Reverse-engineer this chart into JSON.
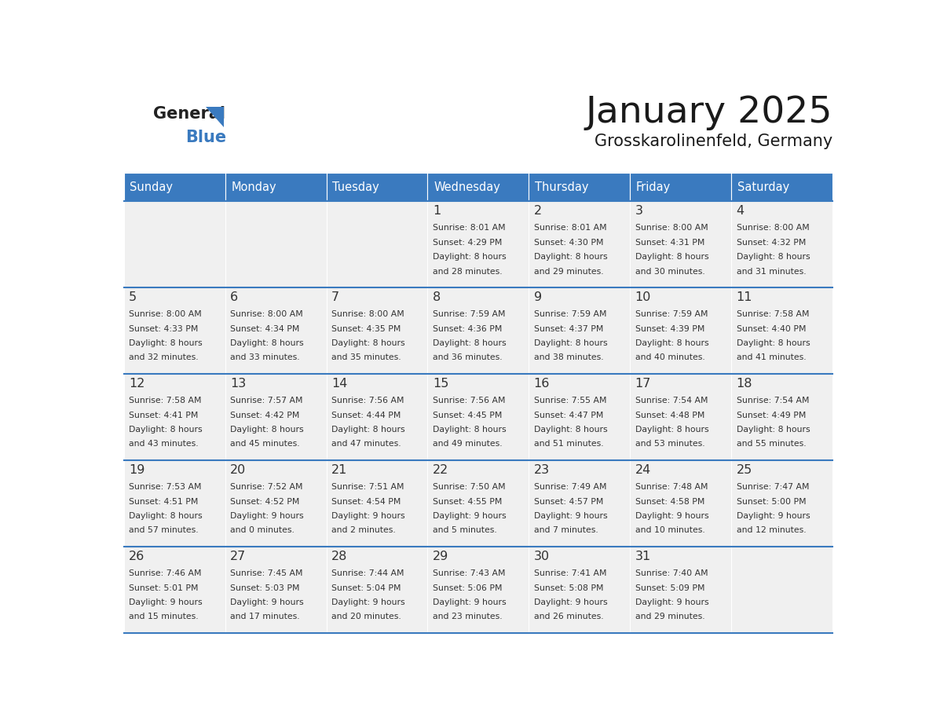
{
  "title": "January 2025",
  "subtitle": "Grosskarolinenfeld, Germany",
  "days_of_week": [
    "Sunday",
    "Monday",
    "Tuesday",
    "Wednesday",
    "Thursday",
    "Friday",
    "Saturday"
  ],
  "header_bg": "#3a7abf",
  "header_text": "#ffffff",
  "cell_bg_light": "#f0f0f0",
  "cell_bg_white": "#ffffff",
  "row_line_color": "#3a7abf",
  "text_color": "#333333",
  "calendar_data": [
    [
      null,
      null,
      null,
      {
        "day": 1,
        "sunrise": "8:01 AM",
        "sunset": "4:29 PM",
        "daylight_hours": 8,
        "daylight_minutes": 28
      },
      {
        "day": 2,
        "sunrise": "8:01 AM",
        "sunset": "4:30 PM",
        "daylight_hours": 8,
        "daylight_minutes": 29
      },
      {
        "day": 3,
        "sunrise": "8:00 AM",
        "sunset": "4:31 PM",
        "daylight_hours": 8,
        "daylight_minutes": 30
      },
      {
        "day": 4,
        "sunrise": "8:00 AM",
        "sunset": "4:32 PM",
        "daylight_hours": 8,
        "daylight_minutes": 31
      }
    ],
    [
      {
        "day": 5,
        "sunrise": "8:00 AM",
        "sunset": "4:33 PM",
        "daylight_hours": 8,
        "daylight_minutes": 32
      },
      {
        "day": 6,
        "sunrise": "8:00 AM",
        "sunset": "4:34 PM",
        "daylight_hours": 8,
        "daylight_minutes": 33
      },
      {
        "day": 7,
        "sunrise": "8:00 AM",
        "sunset": "4:35 PM",
        "daylight_hours": 8,
        "daylight_minutes": 35
      },
      {
        "day": 8,
        "sunrise": "7:59 AM",
        "sunset": "4:36 PM",
        "daylight_hours": 8,
        "daylight_minutes": 36
      },
      {
        "day": 9,
        "sunrise": "7:59 AM",
        "sunset": "4:37 PM",
        "daylight_hours": 8,
        "daylight_minutes": 38
      },
      {
        "day": 10,
        "sunrise": "7:59 AM",
        "sunset": "4:39 PM",
        "daylight_hours": 8,
        "daylight_minutes": 40
      },
      {
        "day": 11,
        "sunrise": "7:58 AM",
        "sunset": "4:40 PM",
        "daylight_hours": 8,
        "daylight_minutes": 41
      }
    ],
    [
      {
        "day": 12,
        "sunrise": "7:58 AM",
        "sunset": "4:41 PM",
        "daylight_hours": 8,
        "daylight_minutes": 43
      },
      {
        "day": 13,
        "sunrise": "7:57 AM",
        "sunset": "4:42 PM",
        "daylight_hours": 8,
        "daylight_minutes": 45
      },
      {
        "day": 14,
        "sunrise": "7:56 AM",
        "sunset": "4:44 PM",
        "daylight_hours": 8,
        "daylight_minutes": 47
      },
      {
        "day": 15,
        "sunrise": "7:56 AM",
        "sunset": "4:45 PM",
        "daylight_hours": 8,
        "daylight_minutes": 49
      },
      {
        "day": 16,
        "sunrise": "7:55 AM",
        "sunset": "4:47 PM",
        "daylight_hours": 8,
        "daylight_minutes": 51
      },
      {
        "day": 17,
        "sunrise": "7:54 AM",
        "sunset": "4:48 PM",
        "daylight_hours": 8,
        "daylight_minutes": 53
      },
      {
        "day": 18,
        "sunrise": "7:54 AM",
        "sunset": "4:49 PM",
        "daylight_hours": 8,
        "daylight_minutes": 55
      }
    ],
    [
      {
        "day": 19,
        "sunrise": "7:53 AM",
        "sunset": "4:51 PM",
        "daylight_hours": 8,
        "daylight_minutes": 57
      },
      {
        "day": 20,
        "sunrise": "7:52 AM",
        "sunset": "4:52 PM",
        "daylight_hours": 9,
        "daylight_minutes": 0
      },
      {
        "day": 21,
        "sunrise": "7:51 AM",
        "sunset": "4:54 PM",
        "daylight_hours": 9,
        "daylight_minutes": 2
      },
      {
        "day": 22,
        "sunrise": "7:50 AM",
        "sunset": "4:55 PM",
        "daylight_hours": 9,
        "daylight_minutes": 5
      },
      {
        "day": 23,
        "sunrise": "7:49 AM",
        "sunset": "4:57 PM",
        "daylight_hours": 9,
        "daylight_minutes": 7
      },
      {
        "day": 24,
        "sunrise": "7:48 AM",
        "sunset": "4:58 PM",
        "daylight_hours": 9,
        "daylight_minutes": 10
      },
      {
        "day": 25,
        "sunrise": "7:47 AM",
        "sunset": "5:00 PM",
        "daylight_hours": 9,
        "daylight_minutes": 12
      }
    ],
    [
      {
        "day": 26,
        "sunrise": "7:46 AM",
        "sunset": "5:01 PM",
        "daylight_hours": 9,
        "daylight_minutes": 15
      },
      {
        "day": 27,
        "sunrise": "7:45 AM",
        "sunset": "5:03 PM",
        "daylight_hours": 9,
        "daylight_minutes": 17
      },
      {
        "day": 28,
        "sunrise": "7:44 AM",
        "sunset": "5:04 PM",
        "daylight_hours": 9,
        "daylight_minutes": 20
      },
      {
        "day": 29,
        "sunrise": "7:43 AM",
        "sunset": "5:06 PM",
        "daylight_hours": 9,
        "daylight_minutes": 23
      },
      {
        "day": 30,
        "sunrise": "7:41 AM",
        "sunset": "5:08 PM",
        "daylight_hours": 9,
        "daylight_minutes": 26
      },
      {
        "day": 31,
        "sunrise": "7:40 AM",
        "sunset": "5:09 PM",
        "daylight_hours": 9,
        "daylight_minutes": 29
      },
      null
    ]
  ]
}
